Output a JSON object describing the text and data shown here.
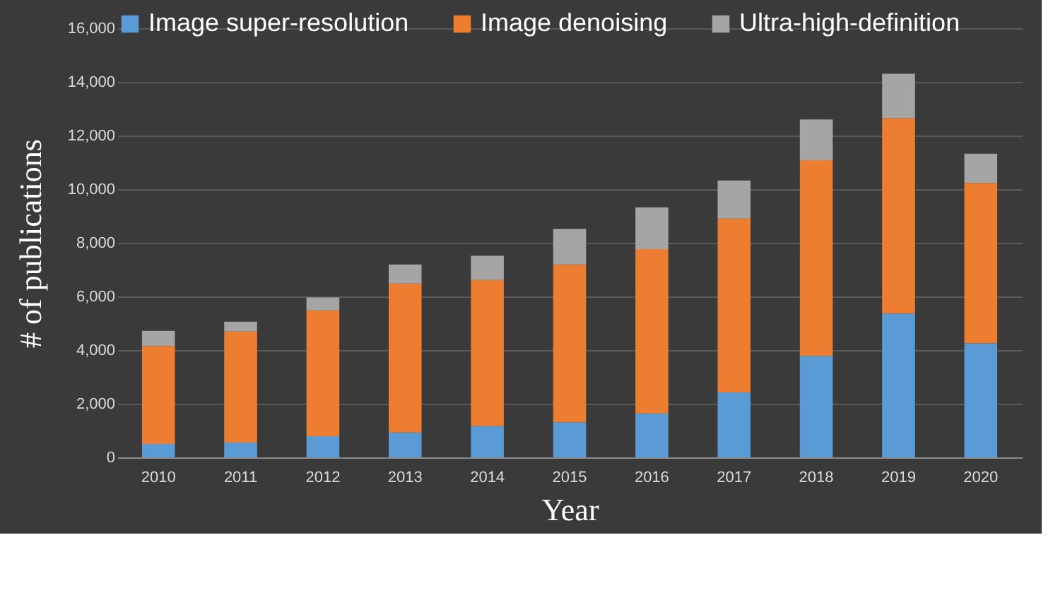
{
  "chart_data": {
    "type": "bar",
    "stacked": true,
    "xlabel": "Year",
    "ylabel": "# of publications",
    "categories": [
      "2010",
      "2011",
      "2012",
      "2013",
      "2014",
      "2015",
      "2016",
      "2017",
      "2018",
      "2019",
      "2020"
    ],
    "series": [
      {
        "name": "Image super-resolution",
        "color": "#5b9bd5",
        "values": [
          500,
          550,
          790,
          930,
          1170,
          1310,
          1640,
          2420,
          3780,
          5360,
          4250
        ]
      },
      {
        "name": "Image denoising",
        "color": "#ed7d31",
        "values": [
          3650,
          4140,
          4690,
          5550,
          5450,
          5880,
          6120,
          6480,
          7300,
          7290,
          5980
        ]
      },
      {
        "name": "Ultra-high-definition",
        "color": "#a5a5a5",
        "values": [
          570,
          370,
          480,
          710,
          900,
          1330,
          1560,
          1420,
          1520,
          1650,
          1090
        ]
      }
    ],
    "ylim": [
      0,
      16000
    ],
    "yticks": [
      {
        "value": 0,
        "label": "0"
      },
      {
        "value": 2000,
        "label": "2,000"
      },
      {
        "value": 4000,
        "label": "4,000"
      },
      {
        "value": 6000,
        "label": "6,000"
      },
      {
        "value": 8000,
        "label": "8,000"
      },
      {
        "value": 10000,
        "label": "10,000"
      },
      {
        "value": 12000,
        "label": "12,000"
      },
      {
        "value": 14000,
        "label": "14,000"
      },
      {
        "value": 16000,
        "label": "16,000"
      }
    ],
    "grid": "y",
    "legend": "top"
  }
}
